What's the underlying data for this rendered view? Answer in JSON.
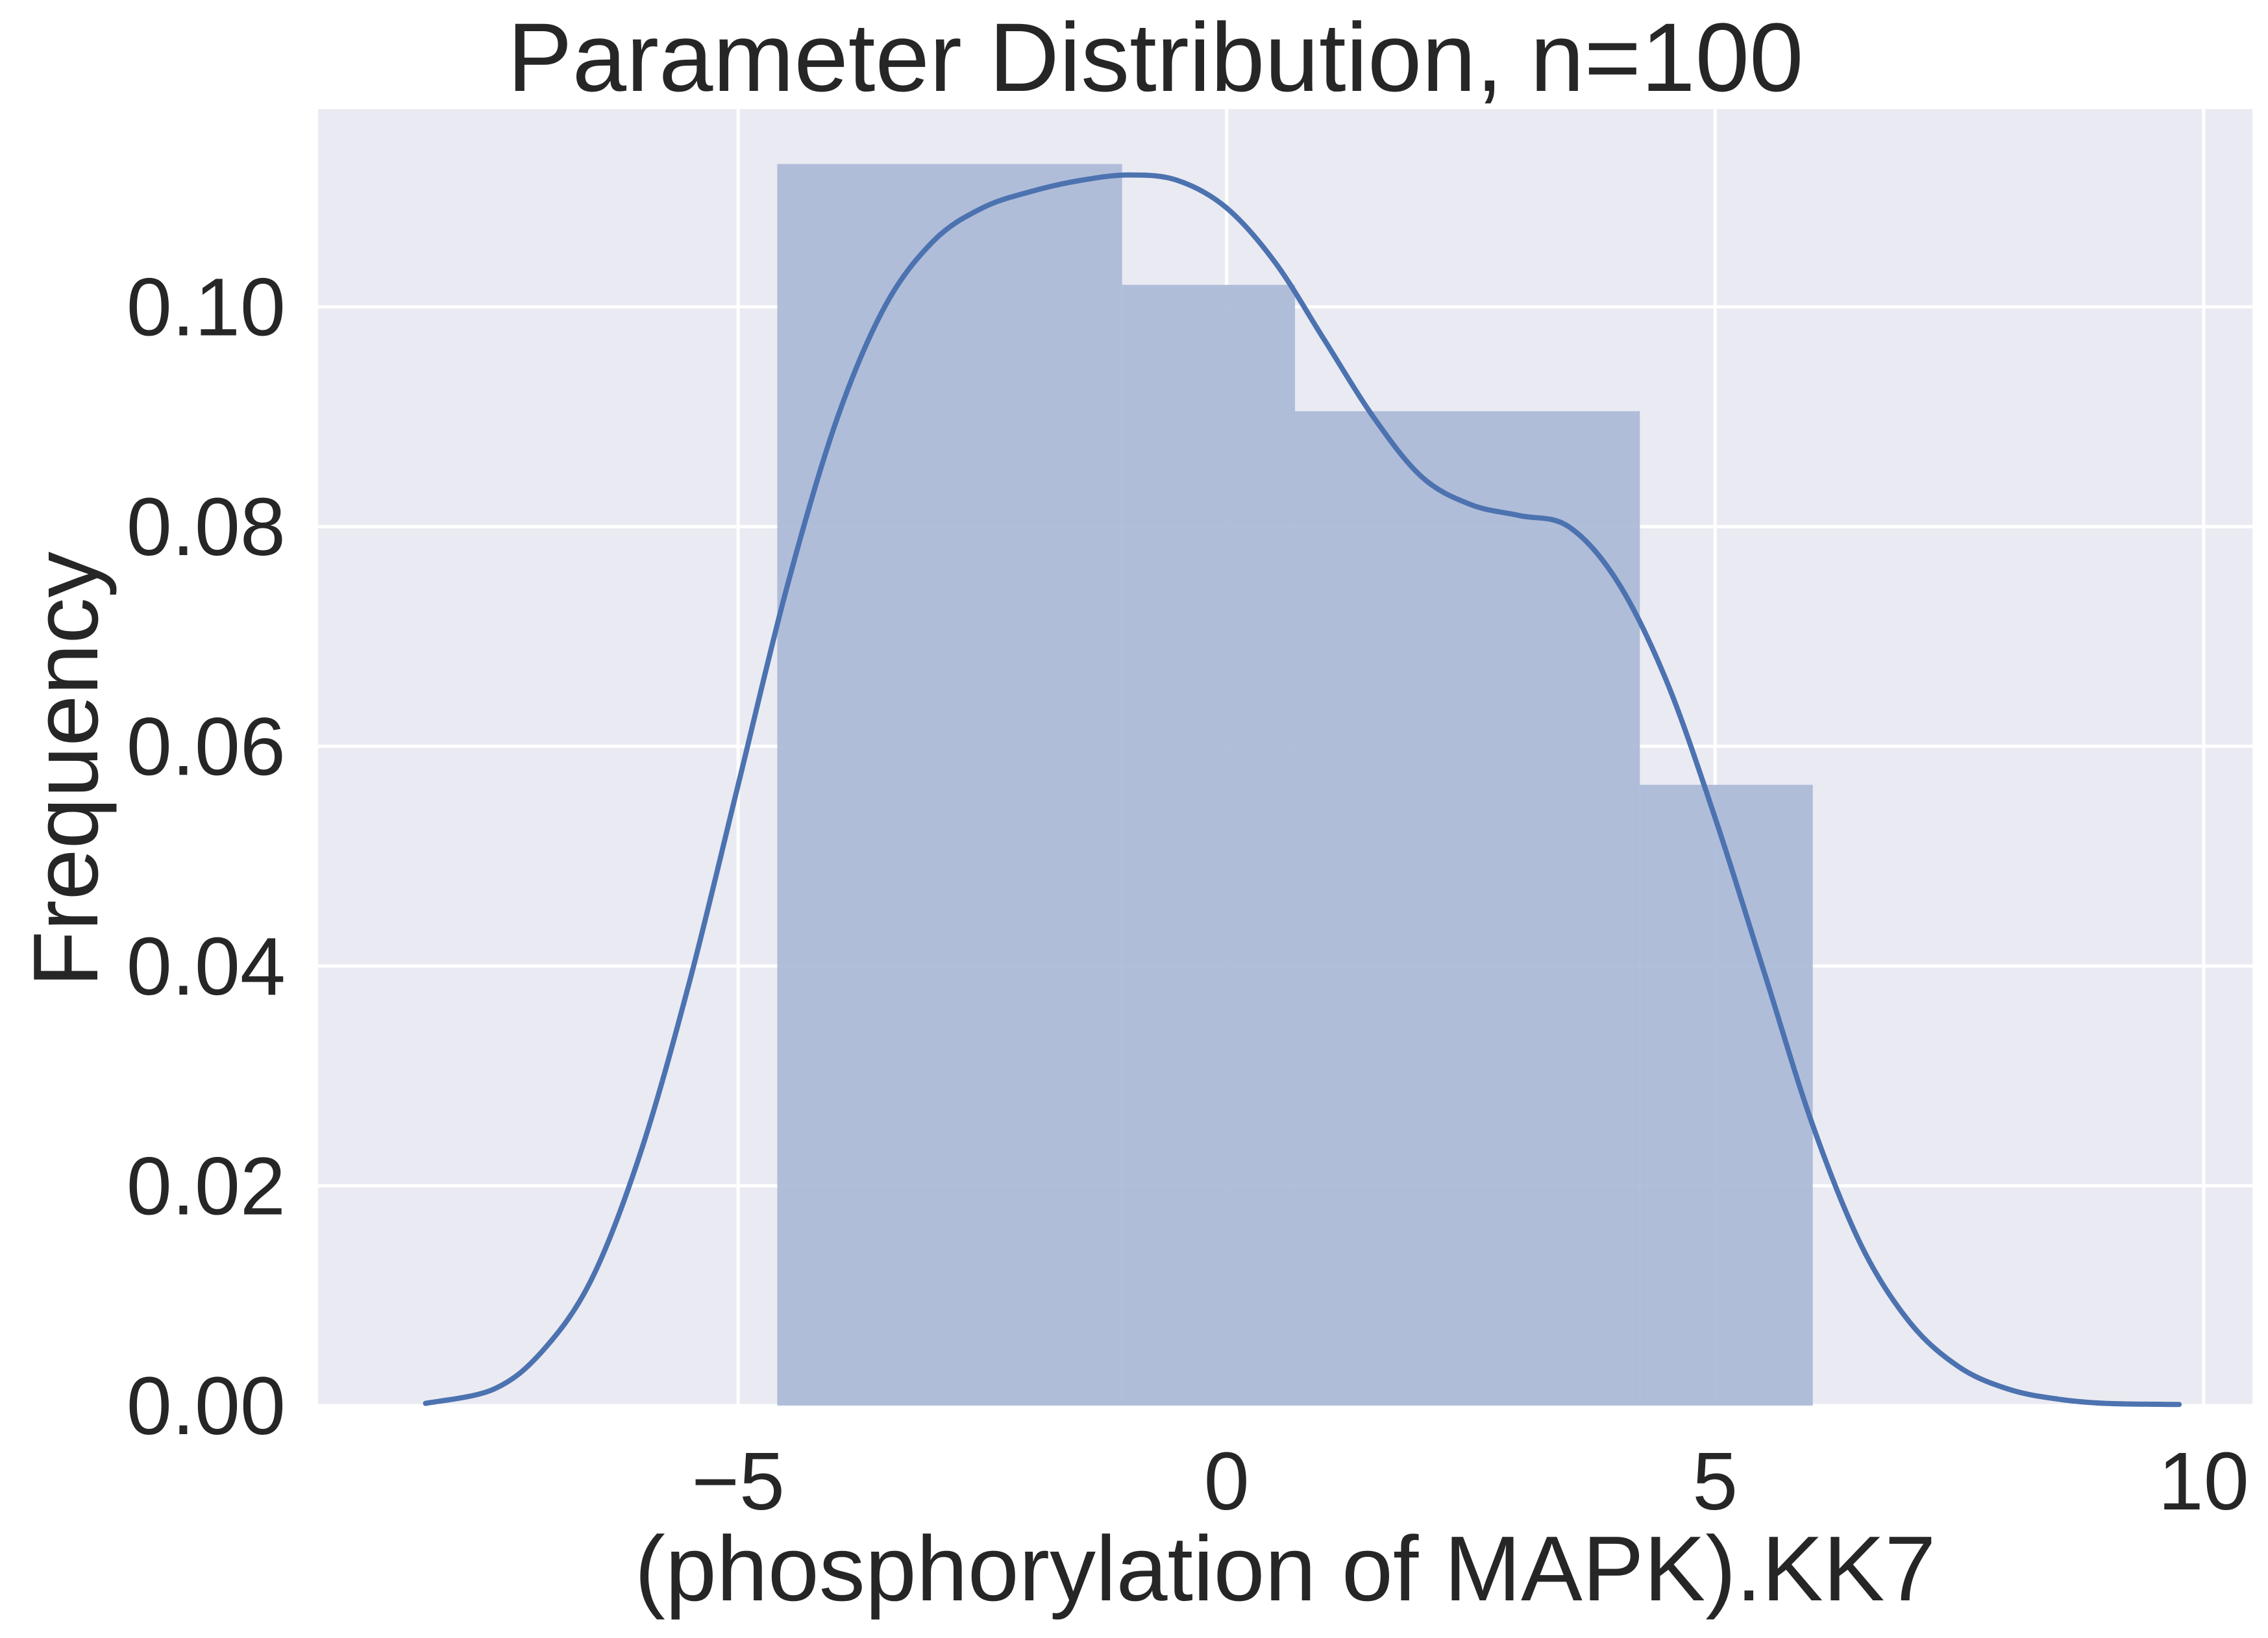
{
  "chart_data": {
    "type": "bar",
    "title": "Parameter Distribution, n=100",
    "xlabel": "(phosphorylation of MAPK).KK7",
    "ylabel": "Frequency",
    "xlim": [
      -9.3,
      10.5
    ],
    "ylim": [
      0,
      0.118
    ],
    "x_ticks": [
      -5,
      0,
      5,
      10
    ],
    "x_tick_labels": [
      "−5",
      "0",
      "5",
      "10"
    ],
    "y_ticks": [
      0,
      0.02,
      0.04,
      0.06,
      0.08,
      0.1
    ],
    "y_tick_labels": [
      "0.00",
      "0.02",
      "0.04",
      "0.06",
      "0.08",
      "0.10"
    ],
    "grid": true,
    "histogram": {
      "bin_edges": [
        -4.6,
        -1.07,
        0.7,
        4.23,
        6.0
      ],
      "values": [
        0.113,
        0.102,
        0.0905,
        0.0565
      ],
      "color": "#aab9d7"
    },
    "kde": {
      "color": "#4c72b0",
      "x": [
        -8.2,
        -7.5,
        -7.0,
        -6.5,
        -6.0,
        -5.5,
        -5.0,
        -4.5,
        -4.0,
        -3.5,
        -3.0,
        -2.5,
        -2.0,
        -1.5,
        -1.0,
        -0.5,
        0.0,
        0.5,
        1.0,
        1.5,
        2.0,
        2.5,
        3.0,
        3.5,
        4.0,
        4.5,
        5.0,
        5.5,
        6.0,
        6.5,
        7.0,
        7.5,
        8.0,
        8.5,
        9.0,
        9.75
      ],
      "y": [
        0.0002,
        0.0015,
        0.005,
        0.0115,
        0.023,
        0.0385,
        0.0565,
        0.0745,
        0.0895,
        0.1,
        0.106,
        0.109,
        0.1105,
        0.1115,
        0.112,
        0.1115,
        0.109,
        0.104,
        0.097,
        0.09,
        0.0845,
        0.082,
        0.081,
        0.08,
        0.075,
        0.066,
        0.0535,
        0.0395,
        0.0255,
        0.0145,
        0.0075,
        0.0035,
        0.0015,
        0.0006,
        0.0002,
        0.0001
      ]
    }
  }
}
